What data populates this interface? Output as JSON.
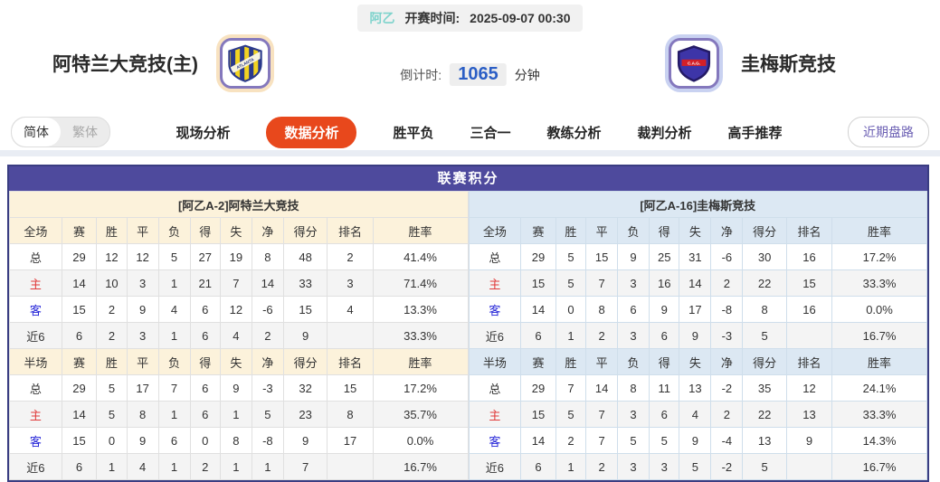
{
  "header": {
    "league": "阿乙",
    "kickoff_label": "开赛时间:",
    "kickoff_time": "2025-09-07 00:30",
    "home_team": "阿特兰大竞技(主)",
    "home_badge_text": "ATLANTA",
    "away_team": "圭梅斯竞技",
    "away_badge_text": "C.A.G.",
    "countdown_label": "倒计时:",
    "countdown_value": "1065",
    "countdown_unit": "分钟"
  },
  "nav": {
    "lang_simplified": "简体",
    "lang_traditional": "繁体",
    "tabs": [
      {
        "name": "tab-live-analysis",
        "label": "现场分析",
        "active": false
      },
      {
        "name": "tab-data-analysis",
        "label": "数据分析",
        "active": true
      },
      {
        "name": "tab-win-draw-lose",
        "label": "胜平负",
        "active": false
      },
      {
        "name": "tab-three-in-one",
        "label": "三合一",
        "active": false
      },
      {
        "name": "tab-coach-analysis",
        "label": "教练分析",
        "active": false
      },
      {
        "name": "tab-referee-analysis",
        "label": "裁判分析",
        "active": false
      },
      {
        "name": "tab-expert-picks",
        "label": "高手推荐",
        "active": false
      }
    ],
    "recent_button": "近期盘路"
  },
  "table": {
    "title": "联赛积分",
    "left": {
      "team_header": "[阿乙A-2]阿特兰大竞技",
      "full_header": [
        "全场",
        "赛",
        "胜",
        "平",
        "负",
        "得",
        "失",
        "净",
        "得分",
        "排名",
        "胜率"
      ],
      "full_rows": [
        {
          "label": "总",
          "cells": [
            "29",
            "12",
            "12",
            "5",
            "27",
            "19",
            "8",
            "48",
            "2",
            "41.4%"
          ]
        },
        {
          "label": "主",
          "cells": [
            "14",
            "10",
            "3",
            "1",
            "21",
            "7",
            "14",
            "33",
            "3",
            "71.4%"
          ]
        },
        {
          "label": "客",
          "cells": [
            "15",
            "2",
            "9",
            "4",
            "6",
            "12",
            "-6",
            "15",
            "4",
            "13.3%"
          ]
        },
        {
          "label": "近6",
          "cells": [
            "6",
            "2",
            "3",
            "1",
            "6",
            "4",
            "2",
            "9",
            "",
            "33.3%"
          ]
        }
      ],
      "half_header": [
        "半场",
        "赛",
        "胜",
        "平",
        "负",
        "得",
        "失",
        "净",
        "得分",
        "排名",
        "胜率"
      ],
      "half_rows": [
        {
          "label": "总",
          "cells": [
            "29",
            "5",
            "17",
            "7",
            "6",
            "9",
            "-3",
            "32",
            "15",
            "17.2%"
          ]
        },
        {
          "label": "主",
          "cells": [
            "14",
            "5",
            "8",
            "1",
            "6",
            "1",
            "5",
            "23",
            "8",
            "35.7%"
          ]
        },
        {
          "label": "客",
          "cells": [
            "15",
            "0",
            "9",
            "6",
            "0",
            "8",
            "-8",
            "9",
            "17",
            "0.0%"
          ]
        },
        {
          "label": "近6",
          "cells": [
            "6",
            "1",
            "4",
            "1",
            "2",
            "1",
            "1",
            "7",
            "",
            "16.7%"
          ]
        }
      ]
    },
    "right": {
      "team_header": "[阿乙A-16]圭梅斯竞技",
      "full_header": [
        "全场",
        "赛",
        "胜",
        "平",
        "负",
        "得",
        "失",
        "净",
        "得分",
        "排名",
        "胜率"
      ],
      "full_rows": [
        {
          "label": "总",
          "cells": [
            "29",
            "5",
            "15",
            "9",
            "25",
            "31",
            "-6",
            "30",
            "16",
            "17.2%"
          ]
        },
        {
          "label": "主",
          "cells": [
            "15",
            "5",
            "7",
            "3",
            "16",
            "14",
            "2",
            "22",
            "15",
            "33.3%"
          ]
        },
        {
          "label": "客",
          "cells": [
            "14",
            "0",
            "8",
            "6",
            "9",
            "17",
            "-8",
            "8",
            "16",
            "0.0%"
          ]
        },
        {
          "label": "近6",
          "cells": [
            "6",
            "1",
            "2",
            "3",
            "6",
            "9",
            "-3",
            "5",
            "",
            "16.7%"
          ]
        }
      ],
      "half_header": [
        "半场",
        "赛",
        "胜",
        "平",
        "负",
        "得",
        "失",
        "净",
        "得分",
        "排名",
        "胜率"
      ],
      "half_rows": [
        {
          "label": "总",
          "cells": [
            "29",
            "7",
            "14",
            "8",
            "11",
            "13",
            "-2",
            "35",
            "12",
            "24.1%"
          ]
        },
        {
          "label": "主",
          "cells": [
            "15",
            "5",
            "7",
            "3",
            "6",
            "4",
            "2",
            "22",
            "13",
            "33.3%"
          ]
        },
        {
          "label": "客",
          "cells": [
            "14",
            "2",
            "7",
            "5",
            "5",
            "9",
            "-4",
            "13",
            "9",
            "14.3%"
          ]
        },
        {
          "label": "近6",
          "cells": [
            "6",
            "1",
            "2",
            "3",
            "3",
            "5",
            "-2",
            "5",
            "",
            "16.7%"
          ]
        }
      ]
    }
  },
  "colors": {
    "accent_purple": "#4e4a9d",
    "active_tab_orange": "#e8481c",
    "league_teal": "#7ed3cc",
    "countdown_blue": "#2b5ec5",
    "home_panel_bg": "#fcf2db",
    "away_panel_bg": "#dce8f3",
    "table_border": "#3a3d82",
    "row_label_colors": {
      "主": "#e03a3a",
      "客": "#2424d8"
    }
  },
  "icons": {
    "home_badge": "home-team-crest-icon",
    "away_badge": "away-team-crest-icon"
  }
}
